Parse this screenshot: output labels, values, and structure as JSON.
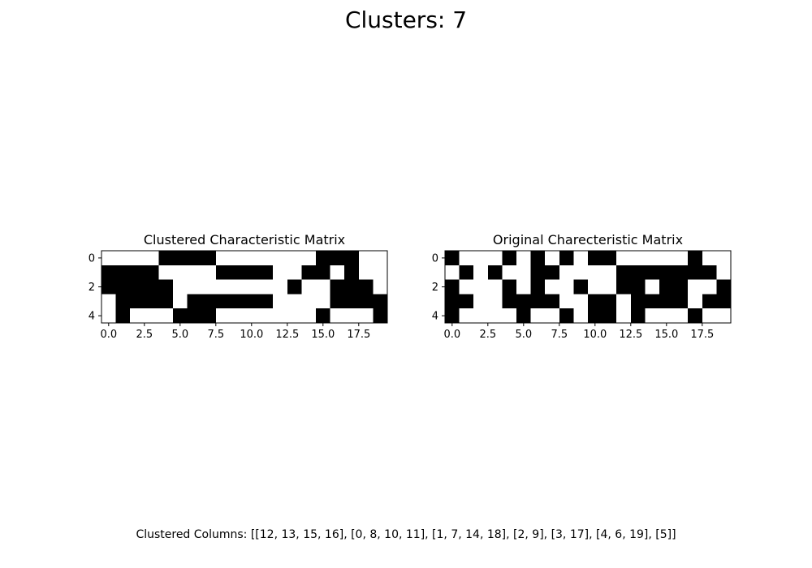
{
  "figure": {
    "title": "Clusters: 7",
    "footer": "Clustered Columns: [[12, 13, 15, 16], [0, 8, 10, 11], [1, 7, 14, 18], [2, 9], [3, 17], [4, 6, 19], [5]]"
  },
  "chart_data": [
    {
      "type": "heatmap",
      "title": "Clustered Characteristic Matrix",
      "rows": 5,
      "cols": 20,
      "cmap": "binary",
      "colors": {
        "one": "#000000",
        "zero": "#ffffff"
      },
      "x_ticks": [
        0.0,
        2.5,
        5.0,
        7.5,
        10.0,
        12.5,
        15.0,
        17.5
      ],
      "x_tick_labels": [
        "0.0",
        "2.5",
        "5.0",
        "7.5",
        "10.0",
        "12.5",
        "15.0",
        "17.5"
      ],
      "y_ticks": [
        0,
        2,
        4
      ],
      "y_tick_labels": [
        "0",
        "2",
        "4"
      ],
      "xlim": [
        -0.5,
        19.5
      ],
      "ylim": [
        4.5,
        -0.5
      ],
      "matrix": [
        [
          0,
          0,
          0,
          0,
          1,
          1,
          1,
          1,
          0,
          0,
          0,
          0,
          0,
          0,
          0,
          1,
          1,
          1,
          0,
          0
        ],
        [
          1,
          1,
          1,
          1,
          0,
          0,
          0,
          0,
          1,
          1,
          1,
          1,
          0,
          0,
          1,
          1,
          0,
          1,
          0,
          0
        ],
        [
          1,
          1,
          1,
          1,
          1,
          0,
          0,
          0,
          0,
          0,
          0,
          0,
          0,
          1,
          0,
          0,
          1,
          1,
          1,
          0
        ],
        [
          0,
          1,
          1,
          1,
          1,
          0,
          1,
          1,
          1,
          1,
          1,
          1,
          0,
          0,
          0,
          0,
          1,
          1,
          1,
          1
        ],
        [
          0,
          1,
          0,
          0,
          0,
          1,
          1,
          1,
          0,
          0,
          0,
          0,
          0,
          0,
          0,
          1,
          0,
          0,
          0,
          1
        ]
      ]
    },
    {
      "type": "heatmap",
      "title": "Original Charecteristic Matrix",
      "rows": 5,
      "cols": 20,
      "cmap": "binary",
      "colors": {
        "one": "#000000",
        "zero": "#ffffff"
      },
      "x_ticks": [
        0.0,
        2.5,
        5.0,
        7.5,
        10.0,
        12.5,
        15.0,
        17.5
      ],
      "x_tick_labels": [
        "0.0",
        "2.5",
        "5.0",
        "7.5",
        "10.0",
        "12.5",
        "15.0",
        "17.5"
      ],
      "y_ticks": [
        0,
        2,
        4
      ],
      "y_tick_labels": [
        "0",
        "2",
        "4"
      ],
      "xlim": [
        -0.5,
        19.5
      ],
      "ylim": [
        4.5,
        -0.5
      ],
      "matrix": [
        [
          1,
          0,
          0,
          0,
          1,
          0,
          1,
          0,
          1,
          0,
          1,
          1,
          0,
          0,
          0,
          0,
          0,
          1,
          0,
          0
        ],
        [
          0,
          1,
          0,
          1,
          0,
          0,
          1,
          1,
          0,
          0,
          0,
          0,
          1,
          1,
          1,
          1,
          1,
          1,
          1,
          0
        ],
        [
          1,
          0,
          0,
          0,
          1,
          0,
          1,
          0,
          0,
          1,
          0,
          0,
          1,
          1,
          0,
          1,
          1,
          0,
          0,
          1
        ],
        [
          1,
          1,
          0,
          0,
          1,
          1,
          1,
          1,
          0,
          0,
          1,
          1,
          0,
          1,
          1,
          1,
          1,
          0,
          1,
          1
        ],
        [
          1,
          0,
          0,
          0,
          0,
          1,
          0,
          0,
          1,
          0,
          1,
          1,
          0,
          1,
          0,
          0,
          0,
          1,
          0,
          0
        ]
      ]
    }
  ]
}
